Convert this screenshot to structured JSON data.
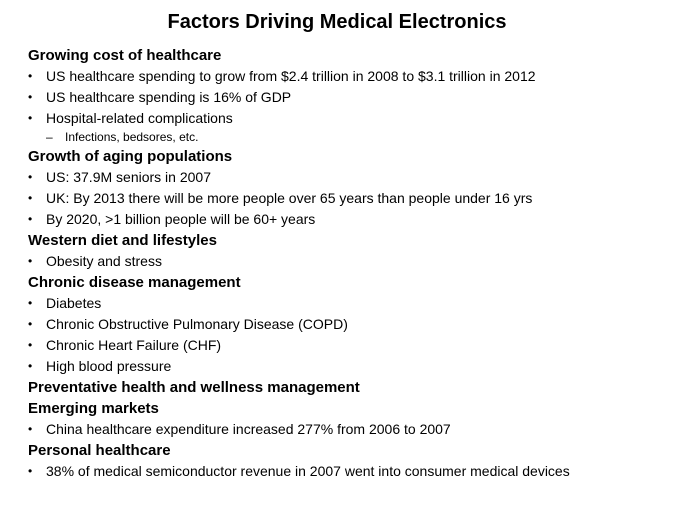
{
  "title": "Factors Driving Medical Electronics",
  "sections": [
    {
      "heading": "Growing cost of healthcare",
      "items": [
        "US healthcare spending to grow from $2.4 trillion in 2008 to $3.1 trillion in 2012",
        "US healthcare spending is 16% of GDP",
        "Hospital-related complications"
      ],
      "subitems": [
        "Infections, bedsores, etc."
      ]
    },
    {
      "heading": "Growth of aging populations",
      "items": [
        "US: 37.9M seniors in 2007",
        "UK: By 2013 there will be more people over 65 years than people under 16 yrs",
        "By 2020, >1 billion people will be 60+ years"
      ]
    },
    {
      "heading": "Western diet and lifestyles",
      "items": [
        "Obesity and stress"
      ]
    },
    {
      "heading": "Chronic disease management",
      "items": [
        "Diabetes",
        "Chronic Obstructive Pulmonary Disease (COPD)",
        "Chronic Heart Failure (CHF)",
        "High blood pressure"
      ]
    },
    {
      "heading": "Preventative health and wellness management",
      "items": []
    },
    {
      "heading": "Emerging markets",
      "items": [
        "China healthcare expenditure increased 277% from 2006 to 2007"
      ]
    },
    {
      "heading": "Personal healthcare",
      "items": [
        "38% of medical semiconductor revenue in 2007 went into consumer medical devices"
      ]
    }
  ]
}
